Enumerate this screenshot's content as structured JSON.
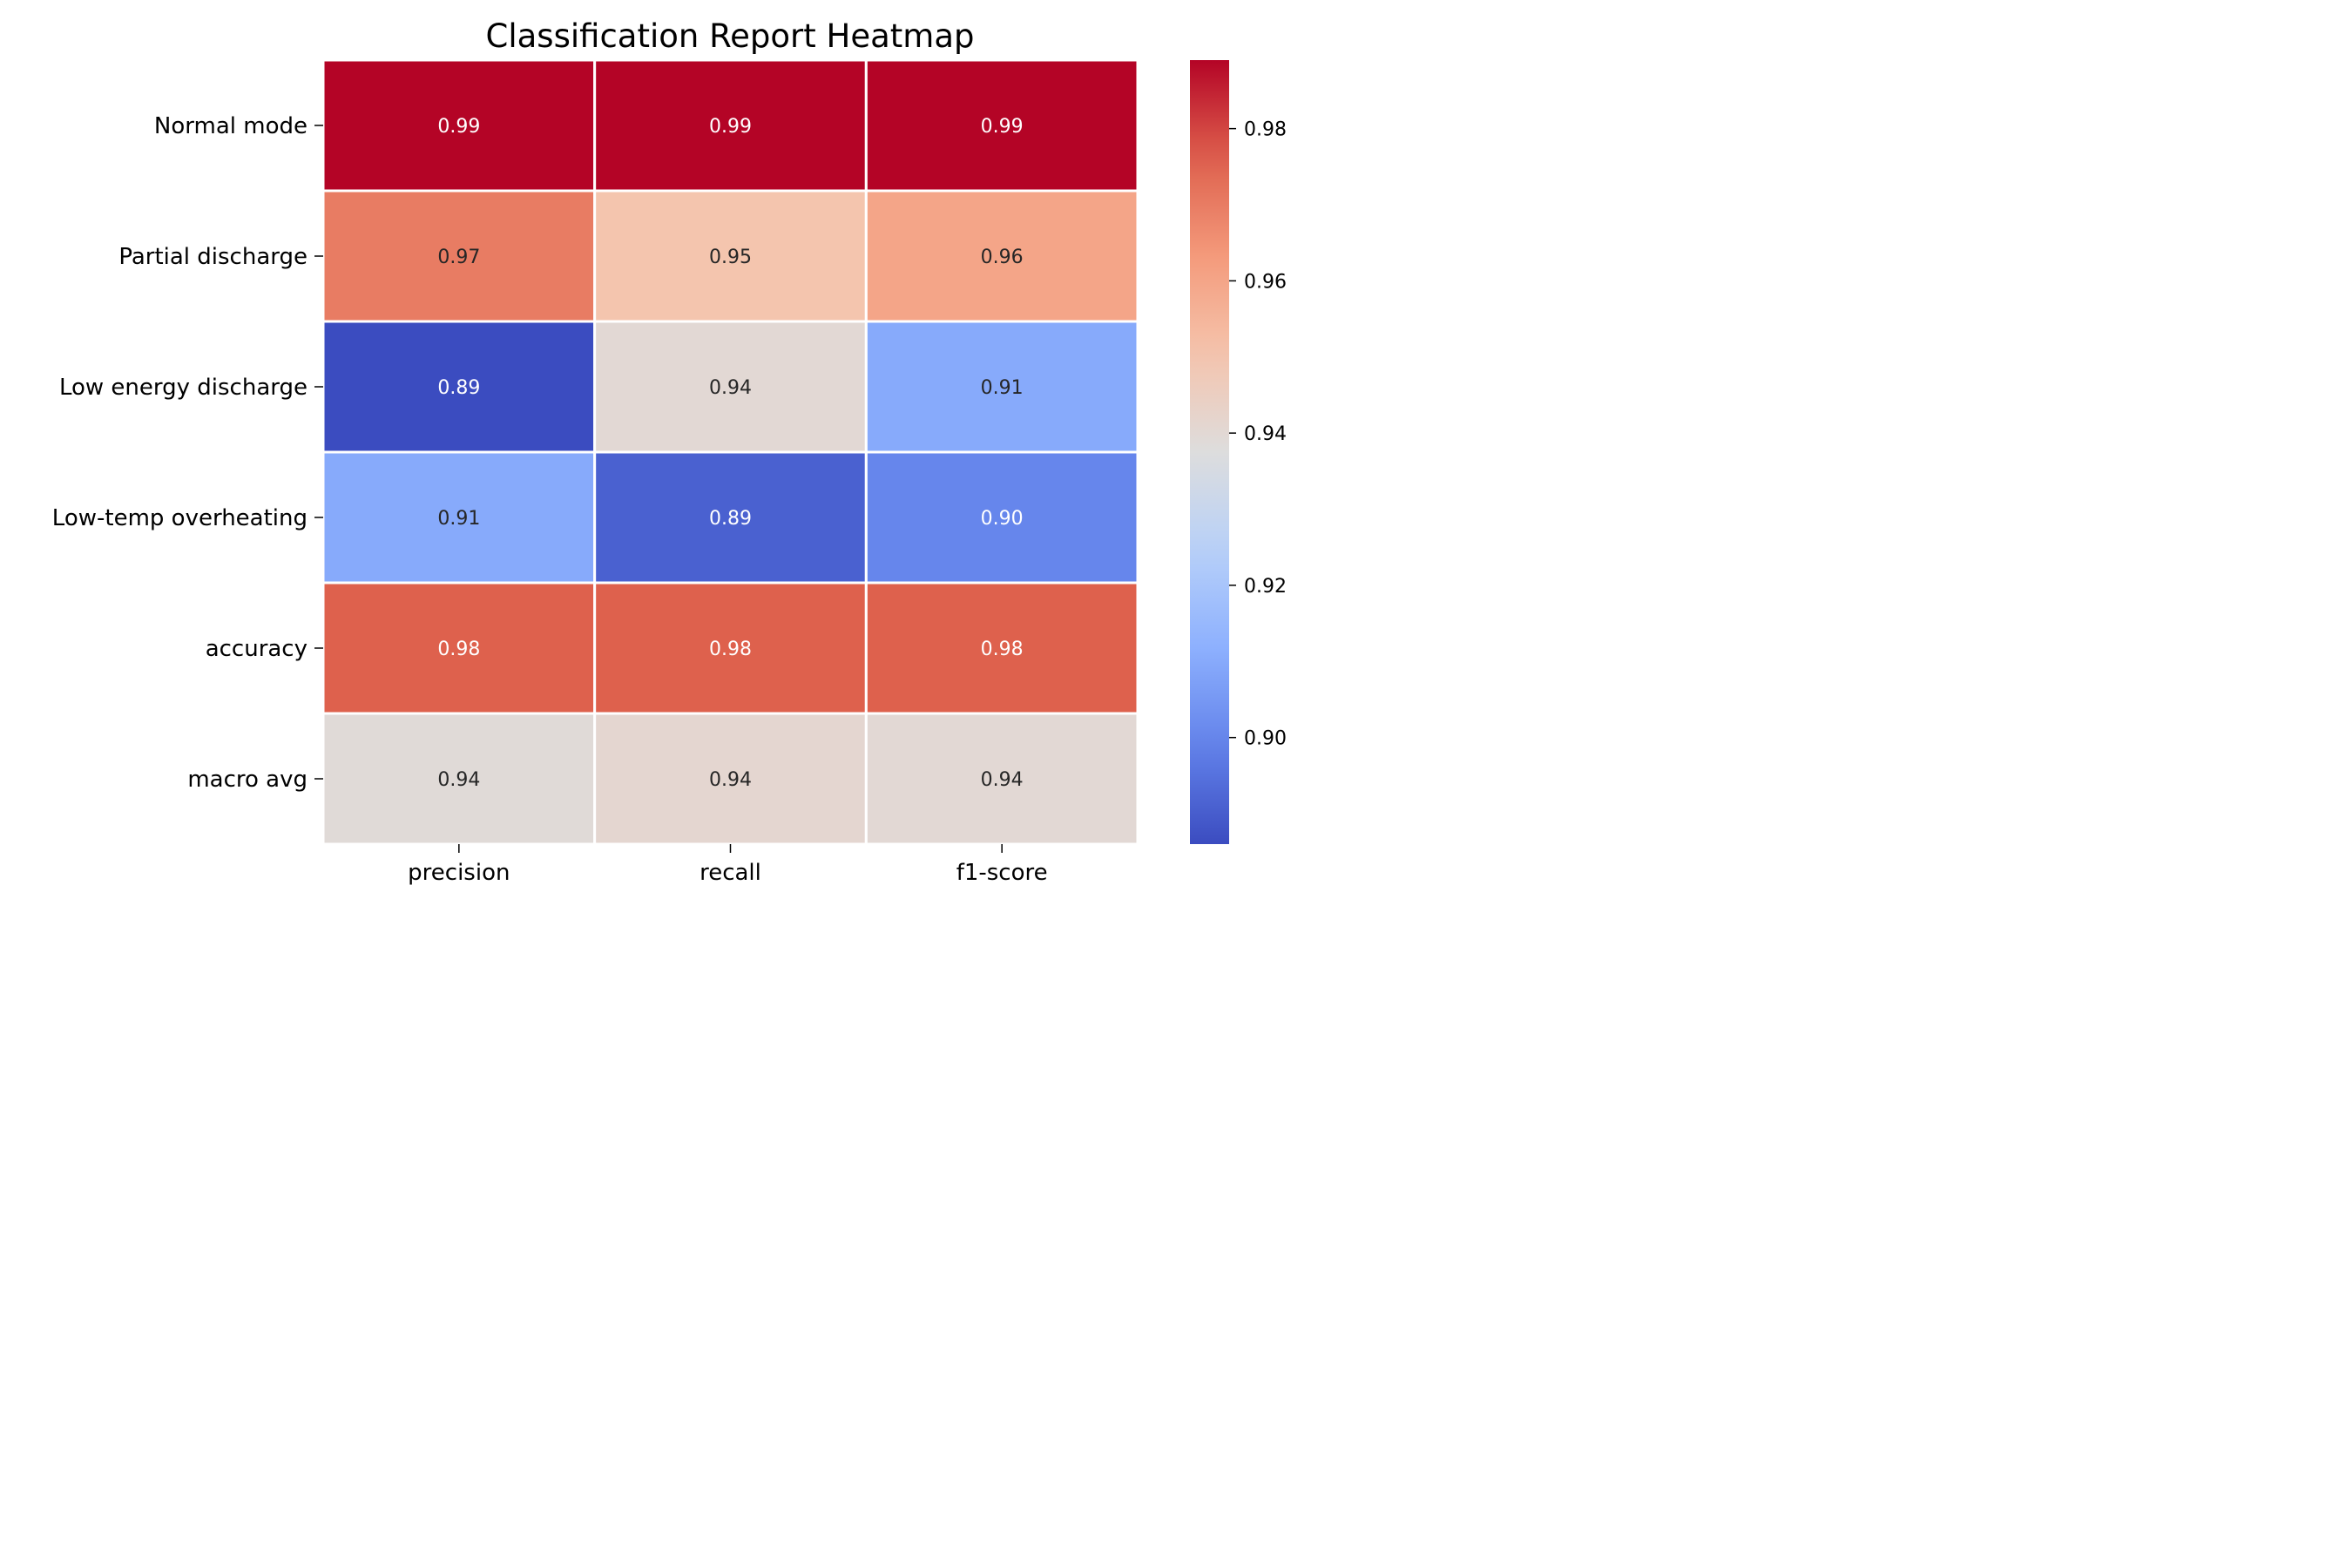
{
  "chart_data": {
    "type": "heatmap",
    "title": "Classification Report Heatmap",
    "xlabel": "",
    "ylabel": "",
    "columns": [
      "precision",
      "recall",
      "f1-score"
    ],
    "rows": [
      "Normal mode",
      "Partial discharge",
      "Low energy discharge",
      "Low-temp overheating",
      "accuracy",
      "macro avg"
    ],
    "values": [
      [
        0.989,
        0.989,
        0.989
      ],
      [
        0.97,
        0.95,
        0.96
      ],
      [
        0.886,
        0.94,
        0.91
      ],
      [
        0.91,
        0.891,
        0.9
      ],
      [
        0.976,
        0.976,
        0.976
      ],
      [
        0.939,
        0.941,
        0.94
      ]
    ],
    "annotations": [
      [
        "0.99",
        "0.99",
        "0.99"
      ],
      [
        "0.97",
        "0.95",
        "0.96"
      ],
      [
        "0.89",
        "0.94",
        "0.91"
      ],
      [
        "0.91",
        "0.89",
        "0.90"
      ],
      [
        "0.98",
        "0.98",
        "0.98"
      ],
      [
        "0.94",
        "0.94",
        "0.94"
      ]
    ],
    "colormap": "coolwarm",
    "colorbar": {
      "vmin": 0.886,
      "vmax": 0.989,
      "ticks": [
        0.9,
        0.92,
        0.94,
        0.96,
        0.98
      ],
      "tick_labels": [
        "0.90",
        "0.92",
        "0.94",
        "0.96",
        "0.98"
      ]
    },
    "grid": false,
    "legend": "right"
  }
}
